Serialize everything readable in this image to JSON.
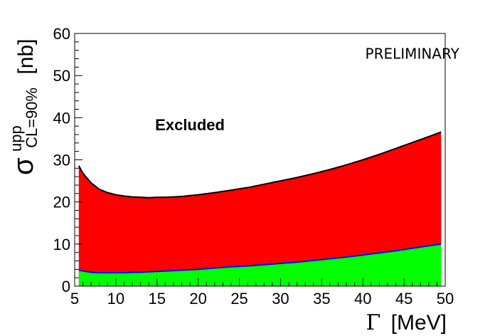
{
  "chart_data": {
    "type": "area",
    "xlabel_symbol": "Γ",
    "xlabel_unit": "[MeV]",
    "ylabel_symbol": "σ",
    "ylabel_superscript": "upp",
    "ylabel_subscript": "CL=90%",
    "ylabel_unit": "[nb]",
    "xlim": [
      5,
      50
    ],
    "ylim": [
      0,
      60
    ],
    "xticks": [
      5,
      10,
      15,
      20,
      25,
      30,
      35,
      40,
      45,
      50
    ],
    "yticks": [
      0,
      10,
      20,
      30,
      40,
      50,
      60
    ],
    "grid": false,
    "annotations": [
      {
        "text": "PRELIMINARY",
        "x": 46,
        "y": 54
      },
      {
        "text": "Excluded",
        "x": 19,
        "y": 37
      }
    ],
    "series": [
      {
        "fill": "#ff0000",
        "line": "#000000",
        "x": [
          5.5,
          6,
          7,
          8,
          9,
          10,
          11,
          12,
          13,
          14,
          15,
          16,
          17,
          18,
          19,
          20,
          22,
          24,
          26,
          28,
          30,
          32,
          34,
          36,
          38,
          40,
          42,
          44,
          46,
          48,
          49.5
        ],
        "values": [
          28.6,
          26.8,
          24.5,
          23.0,
          22.2,
          21.7,
          21.4,
          21.2,
          21.1,
          21.0,
          21.1,
          21.1,
          21.2,
          21.3,
          21.5,
          21.7,
          22.2,
          22.8,
          23.4,
          24.2,
          25.0,
          25.8,
          26.7,
          27.7,
          28.8,
          30.0,
          31.3,
          32.7,
          34.1,
          35.5,
          36.6
        ]
      },
      {
        "fill": "#00ff00",
        "line": "#0000ff",
        "x": [
          5.5,
          6,
          7,
          8,
          9,
          10,
          11,
          12,
          13,
          14,
          15,
          16,
          17,
          18,
          19,
          20,
          22,
          24,
          26,
          28,
          30,
          32,
          34,
          36,
          38,
          40,
          42,
          44,
          46,
          48,
          49.5
        ],
        "values": [
          3.8,
          3.6,
          3.3,
          3.2,
          3.2,
          3.2,
          3.2,
          3.3,
          3.3,
          3.4,
          3.5,
          3.6,
          3.7,
          3.8,
          3.9,
          4.0,
          4.3,
          4.6,
          4.8,
          5.1,
          5.4,
          5.7,
          6.1,
          6.5,
          6.9,
          7.4,
          7.9,
          8.4,
          9.0,
          9.6,
          10.0
        ]
      }
    ]
  }
}
